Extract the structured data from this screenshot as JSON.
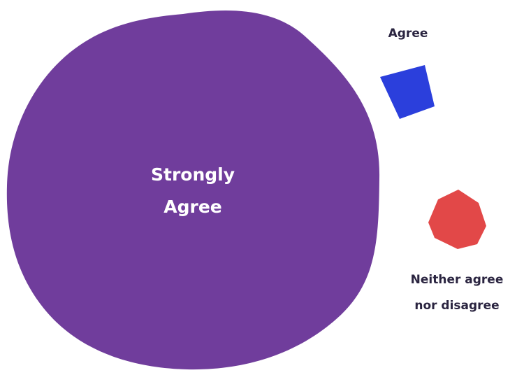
{
  "chart_data": {
    "type": "bubble",
    "title": "",
    "categories": [
      "Strongly Agree",
      "Agree",
      "Neither agree nor disagree"
    ],
    "series": [
      {
        "category": "Strongly Agree",
        "label_lines": [
          "Strongly",
          "Agree"
        ],
        "color": "#703d9c",
        "label_color": "#ffffff",
        "shape": "blob"
      },
      {
        "category": "Agree",
        "label_lines": [
          "Agree"
        ],
        "color": "#2b3fdc",
        "label_color": "#2a2440",
        "shape": "square"
      },
      {
        "category": "Neither agree nor disagree",
        "label_lines": [
          "Neither agree",
          "nor disagree"
        ],
        "color": "#e24848",
        "label_color": "#2a2440",
        "shape": "hexagon"
      }
    ],
    "legend": "none",
    "grid": false
  }
}
